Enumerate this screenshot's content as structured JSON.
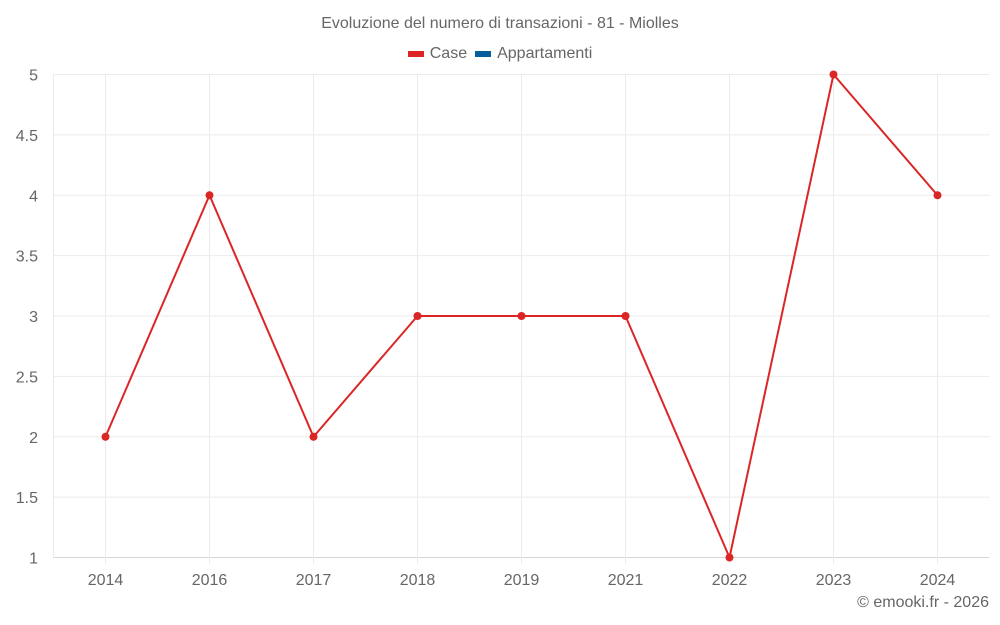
{
  "title": "Evoluzione del numero di transazioni - 81 - Miolles",
  "legend": [
    {
      "label": "Case",
      "color": "#dc2626"
    },
    {
      "label": "Appartamenti",
      "color": "#075c9c"
    }
  ],
  "credit": "© emooki.fr - 2026",
  "chart_data": {
    "type": "line",
    "title": "Evoluzione del numero di transazioni - 81 - Miolles",
    "categories": [
      "2014",
      "2016",
      "2017",
      "2018",
      "2019",
      "2021",
      "2022",
      "2023",
      "2024"
    ],
    "series": [
      {
        "name": "Case",
        "color": "#dc2626",
        "values": [
          2,
          4,
          2,
          3,
          3,
          3,
          1,
          5,
          4
        ]
      },
      {
        "name": "Appartamenti",
        "color": "#075c9c",
        "values": []
      }
    ],
    "xlabel": "",
    "ylabel": "",
    "ylim": [
      1,
      5
    ],
    "yticks": [
      "1",
      "1.5",
      "2",
      "2.5",
      "3",
      "3.5",
      "4",
      "4.5",
      "5"
    ],
    "grid": true,
    "legend_position": "top"
  }
}
